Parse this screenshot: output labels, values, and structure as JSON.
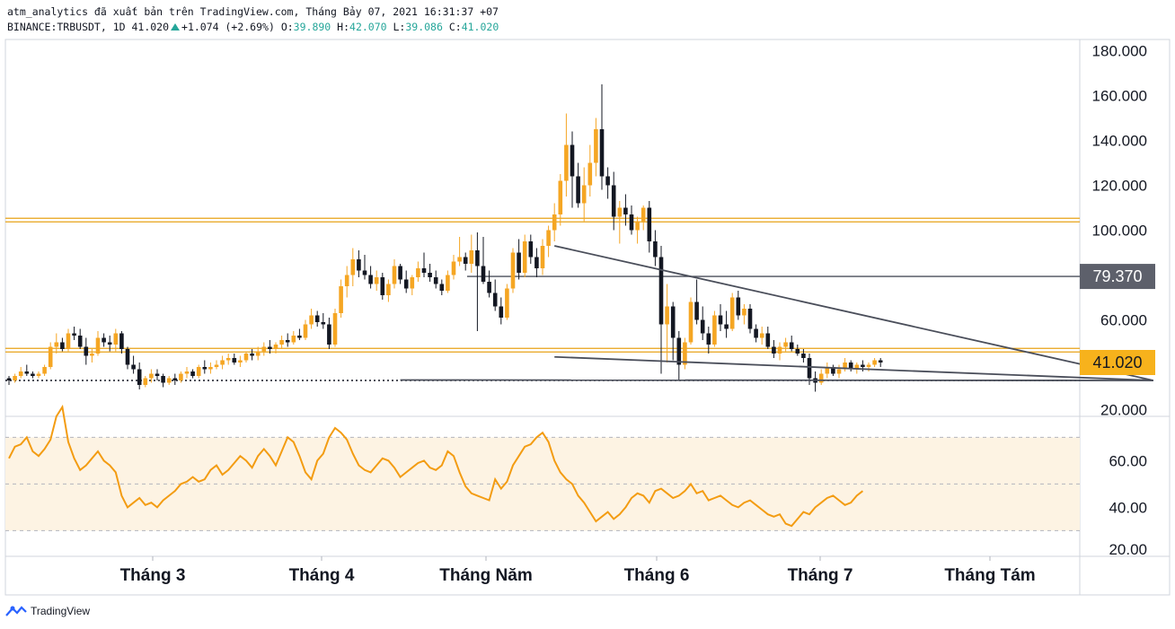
{
  "header": {
    "line1": "atm_analytics đã xuất bản trên TradingView.com, Tháng Bảy 07, 2021 16:31:37 +07",
    "symbol": "BINANCE:TRBUSDT, 1D 41.020",
    "change": "+1.074 (+2.69%)",
    "o_label": "O:",
    "o_value": "39.890",
    "h_label": "H:",
    "h_value": "42.070",
    "l_label": "L:",
    "l_value": "39.086",
    "c_label": "C:",
    "c_value": "41.020"
  },
  "footer": {
    "brand": "TradingView"
  },
  "colors": {
    "bull": "#f5a623",
    "bear": "#131722",
    "level": "#e8a317",
    "trend": "#4a4e5a",
    "rsi_line": "#f39c12",
    "rsi_band": "#fdf3e3",
    "last_price_bg": "#f7b21c",
    "level_label_bg": "#5d606b"
  },
  "chart_data": [
    {
      "type": "candlestick",
      "symbol": "BINANCE:TRBUSDT",
      "interval": "1D",
      "y_axis_ticks": [
        "20.000",
        "60.000",
        "100.000",
        "120.000",
        "140.000",
        "160.000",
        "180.000"
      ],
      "ylim": [
        17,
        185
      ],
      "x_axis_ticks": [
        "Tháng 3",
        "Tháng 4",
        "Tháng Năm",
        "Tháng 6",
        "Tháng 7",
        "Tháng Tám"
      ],
      "labels": {
        "horizontal_level": "79.370",
        "last_price": "41.020"
      },
      "levels": [
        104.5,
        46.5,
        79.37,
        33
      ],
      "triangle": {
        "upper": [
          [
            92,
            43.5
          ],
          [
            193,
            33
          ]
        ],
        "lower": [
          [
            66,
            33.2
          ],
          [
            193,
            33
          ]
        ]
      },
      "candles": [
        [
          34,
          35,
          31,
          33
        ],
        [
          33,
          36,
          32,
          35
        ],
        [
          35,
          39,
          34,
          37
        ],
        [
          37,
          40,
          35,
          36
        ],
        [
          36,
          37,
          34,
          35
        ],
        [
          35,
          37,
          34,
          36
        ],
        [
          36,
          40,
          35,
          39
        ],
        [
          39,
          50,
          38,
          48
        ],
        [
          48,
          54,
          45,
          50
        ],
        [
          50,
          52,
          46,
          47
        ],
        [
          47,
          56,
          46,
          54
        ],
        [
          54,
          57,
          51,
          53
        ],
        [
          53,
          56,
          47,
          48
        ],
        [
          48,
          52,
          40,
          44
        ],
        [
          44,
          47,
          41,
          45
        ],
        [
          45,
          55,
          44,
          52
        ],
        [
          52,
          54,
          48,
          50
        ],
        [
          50,
          53,
          46,
          49
        ],
        [
          49,
          56,
          46,
          54
        ],
        [
          54,
          55,
          45,
          47
        ],
        [
          47,
          48,
          38,
          40
        ],
        [
          40,
          44,
          36,
          38
        ],
        [
          38,
          41,
          29,
          31
        ],
        [
          31,
          35,
          30,
          34
        ],
        [
          34,
          38,
          32,
          36
        ],
        [
          36,
          38,
          33,
          35
        ],
        [
          35,
          36,
          30,
          32
        ],
        [
          32,
          35,
          31,
          34
        ],
        [
          34,
          36,
          31,
          33
        ],
        [
          33,
          37,
          32,
          36
        ],
        [
          36,
          39,
          34,
          37
        ],
        [
          37,
          38,
          34,
          35
        ],
        [
          35,
          40,
          34,
          39
        ],
        [
          39,
          42,
          36,
          38
        ],
        [
          38,
          41,
          36,
          39
        ],
        [
          39,
          42,
          38,
          40
        ],
        [
          40,
          44,
          38,
          42
        ],
        [
          42,
          45,
          40,
          43
        ],
        [
          43,
          45,
          40,
          41
        ],
        [
          41,
          44,
          39,
          42
        ],
        [
          42,
          46,
          41,
          45
        ],
        [
          45,
          47,
          42,
          44
        ],
        [
          44,
          48,
          42,
          46
        ],
        [
          46,
          50,
          44,
          48
        ],
        [
          48,
          51,
          45,
          47
        ],
        [
          47,
          50,
          45,
          49
        ],
        [
          49,
          53,
          47,
          51
        ],
        [
          51,
          54,
          48,
          50
        ],
        [
          50,
          55,
          49,
          53
        ],
        [
          53,
          56,
          51,
          52
        ],
        [
          52,
          60,
          51,
          58
        ],
        [
          58,
          65,
          56,
          62
        ],
        [
          62,
          64,
          57,
          59
        ],
        [
          59,
          63,
          56,
          58
        ],
        [
          58,
          61,
          47,
          49
        ],
        [
          49,
          65,
          48,
          63
        ],
        [
          63,
          78,
          61,
          75
        ],
        [
          75,
          84,
          70,
          80
        ],
        [
          80,
          92,
          75,
          87
        ],
        [
          87,
          91,
          79,
          82
        ],
        [
          82,
          89,
          78,
          80
        ],
        [
          80,
          84,
          74,
          76
        ],
        [
          76,
          82,
          73,
          79
        ],
        [
          79,
          81,
          69,
          71
        ],
        [
          71,
          78,
          68,
          76
        ],
        [
          76,
          87,
          74,
          84
        ],
        [
          84,
          85,
          76,
          78
        ],
        [
          78,
          82,
          72,
          74
        ],
        [
          74,
          80,
          71,
          79
        ],
        [
          79,
          86,
          77,
          83
        ],
        [
          83,
          90,
          79,
          81
        ],
        [
          81,
          85,
          77,
          79
        ],
        [
          79,
          82,
          74,
          76
        ],
        [
          76,
          78,
          71,
          73
        ],
        [
          73,
          82,
          72,
          80
        ],
        [
          80,
          89,
          78,
          86
        ],
        [
          86,
          97,
          84,
          88
        ],
        [
          88,
          90,
          82,
          85
        ],
        [
          85,
          98,
          81,
          91
        ],
        [
          91,
          99,
          55,
          84
        ],
        [
          84,
          97,
          76,
          77
        ],
        [
          77,
          82,
          70,
          72
        ],
        [
          72,
          78,
          64,
          66
        ],
        [
          66,
          70,
          58,
          61
        ],
        [
          61,
          76,
          60,
          74
        ],
        [
          74,
          92,
          72,
          90
        ],
        [
          90,
          96,
          78,
          81
        ],
        [
          81,
          98,
          79,
          95
        ],
        [
          95,
          98,
          85,
          88
        ],
        [
          88,
          92,
          79,
          83
        ],
        [
          83,
          96,
          80,
          93
        ],
        [
          93,
          102,
          88,
          100
        ],
        [
          100,
          112,
          95,
          107
        ],
        [
          107,
          125,
          102,
          122
        ],
        [
          122,
          152,
          115,
          138
        ],
        [
          138,
          144,
          110,
          124
        ],
        [
          124,
          130,
          110,
          112
        ],
        [
          112,
          128,
          104,
          120
        ],
        [
          120,
          138,
          115,
          130
        ],
        [
          130,
          150,
          124,
          145
        ],
        [
          145,
          165,
          118,
          124
        ],
        [
          124,
          128,
          114,
          120
        ],
        [
          120,
          126,
          100,
          106
        ],
        [
          106,
          113,
          94,
          110
        ],
        [
          110,
          116,
          102,
          107
        ],
        [
          107,
          111,
          98,
          100
        ],
        [
          100,
          106,
          94,
          104
        ],
        [
          104,
          111,
          100,
          110
        ],
        [
          110,
          113,
          90,
          95
        ],
        [
          95,
          100,
          84,
          88
        ],
        [
          88,
          93,
          36,
          58
        ],
        [
          58,
          76,
          41,
          66
        ],
        [
          66,
          68,
          42,
          52
        ],
        [
          52,
          55,
          33,
          40
        ],
        [
          40,
          52,
          38,
          50
        ],
        [
          50,
          70,
          49,
          68
        ],
        [
          68,
          78,
          58,
          60
        ],
        [
          60,
          66,
          51,
          54
        ],
        [
          54,
          57,
          45,
          49
        ],
        [
          49,
          64,
          48,
          62
        ],
        [
          62,
          67,
          55,
          58
        ],
        [
          58,
          64,
          52,
          56
        ],
        [
          56,
          72,
          55,
          70
        ],
        [
          70,
          73,
          60,
          62
        ],
        [
          62,
          67,
          58,
          65
        ],
        [
          65,
          67,
          54,
          56
        ],
        [
          56,
          58,
          50,
          52
        ],
        [
          52,
          57,
          49,
          54
        ],
        [
          54,
          57,
          47,
          48
        ],
        [
          48,
          51,
          43,
          45
        ],
        [
          45,
          50,
          42,
          48
        ],
        [
          48,
          52,
          46,
          50
        ],
        [
          50,
          53,
          46,
          47
        ],
        [
          47,
          49,
          44,
          45
        ],
        [
          45,
          47,
          41,
          43
        ],
        [
          43,
          45,
          31,
          34
        ],
        [
          34,
          37,
          28,
          32
        ],
        [
          32,
          38,
          31,
          36
        ],
        [
          36,
          41,
          34,
          39
        ],
        [
          39,
          40,
          35,
          36
        ],
        [
          36,
          40,
          34,
          38
        ],
        [
          38,
          43,
          37,
          41
        ],
        [
          41,
          42,
          37,
          38
        ],
        [
          38,
          41,
          36,
          40
        ],
        [
          40,
          42,
          37,
          39
        ],
        [
          39,
          41,
          37,
          40
        ],
        [
          40,
          43,
          39,
          42
        ],
        [
          42,
          43,
          39,
          41
        ]
      ]
    },
    {
      "type": "line",
      "name": "RSI",
      "y_axis_ticks": [
        "20.00",
        "40.00",
        "60.00"
      ],
      "ylim": [
        19,
        79
      ],
      "bands": [
        70,
        50,
        30
      ],
      "values": [
        61,
        66,
        67,
        70,
        64,
        62,
        65,
        69,
        79,
        83,
        68,
        61,
        56,
        58,
        61,
        64,
        60,
        58,
        55,
        45,
        40,
        42,
        44,
        41,
        42,
        40,
        43,
        45,
        47,
        50,
        51,
        53,
        51,
        52,
        56,
        58,
        54,
        56,
        59,
        62,
        60,
        57,
        62,
        65,
        62,
        58,
        64,
        70,
        68,
        62,
        55,
        52,
        60,
        63,
        70,
        74,
        72,
        69,
        63,
        58,
        56,
        55,
        58,
        61,
        60,
        57,
        53,
        55,
        57,
        59,
        60,
        57,
        56,
        58,
        64,
        62,
        55,
        49,
        46,
        45,
        44,
        43,
        52,
        48,
        51,
        58,
        62,
        66,
        67,
        70,
        72,
        68,
        60,
        55,
        52,
        50,
        45,
        42,
        38,
        34,
        36,
        38,
        35,
        37,
        40,
        44,
        46,
        45,
        42,
        47,
        48,
        46,
        44,
        45,
        47,
        50,
        46,
        47,
        43,
        44,
        45,
        43,
        41,
        40,
        42,
        43,
        41,
        39,
        37,
        36,
        37,
        33,
        32,
        35,
        38,
        37,
        40,
        42,
        44,
        45,
        43,
        41,
        42,
        45,
        47
      ]
    }
  ]
}
